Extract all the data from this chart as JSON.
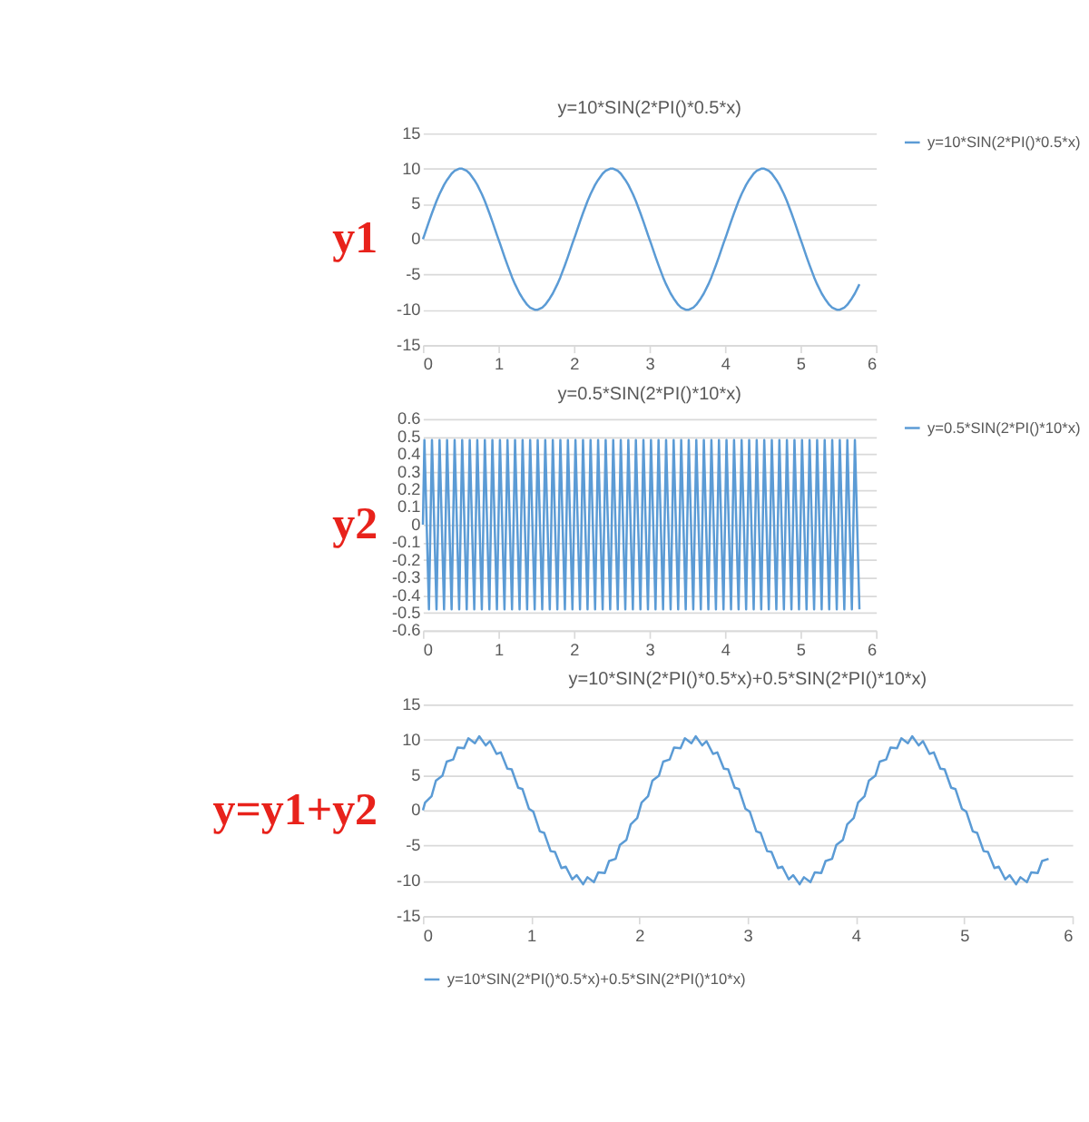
{
  "chart_data": [
    {
      "type": "line",
      "title": "y=10*SIN(2*PI()*0.5*x)",
      "xlim": [
        0,
        6
      ],
      "xticks": [
        0,
        1,
        2,
        3,
        4,
        5,
        6
      ],
      "ylim": [
        -15,
        15
      ],
      "yticks": [
        -15,
        -10,
        -5,
        0,
        5,
        10,
        15
      ],
      "grid": "y",
      "legend": "right",
      "annotations": [
        "y1"
      ],
      "x": [
        0,
        0.02,
        0.08,
        0.12,
        0.18,
        0.22,
        0.28,
        0.32,
        0.38,
        0.42,
        0.48,
        0.52,
        0.58,
        0.62,
        0.68,
        0.72,
        0.78,
        0.82,
        0.88,
        0.92,
        0.98,
        1.02,
        1.08,
        1.12,
        1.18,
        1.22,
        1.28,
        1.32,
        1.38,
        1.42,
        1.48,
        1.52,
        1.58,
        1.62,
        1.68,
        1.72,
        1.78,
        1.82,
        1.88,
        1.92,
        1.98,
        2.02,
        2.08,
        2.12,
        2.18,
        2.22,
        2.28,
        2.32,
        2.38,
        2.42,
        2.48,
        2.52,
        2.58,
        2.62,
        2.68,
        2.72,
        2.78,
        2.82,
        2.88,
        2.92,
        2.98,
        3.02,
        3.08,
        3.12,
        3.18,
        3.22,
        3.28,
        3.32,
        3.38,
        3.42,
        3.48,
        3.52,
        3.58,
        3.62,
        3.68,
        3.72,
        3.78,
        3.82,
        3.88,
        3.92,
        3.98,
        4.02,
        4.08,
        4.12,
        4.18,
        4.22,
        4.28,
        4.32,
        4.38,
        4.42,
        4.48,
        4.52,
        4.58,
        4.62,
        4.68,
        4.72,
        4.78,
        4.82,
        4.88,
        4.92,
        4.98,
        5.02,
        5.08,
        5.12,
        5.18,
        5.22,
        5.28,
        5.32,
        5.38,
        5.42,
        5.48,
        5.52,
        5.58,
        5.62,
        5.68,
        5.72,
        5.78
      ],
      "series": [
        {
          "name": "y=10*SIN(2*PI()*0.5*x)",
          "color": "#5b9bd5",
          "values": [
            0,
            0.6,
            2.5,
            3.7,
            5.4,
            6.4,
            7.7,
            8.4,
            9.3,
            9.7,
            10.0,
            10.0,
            9.7,
            9.3,
            8.4,
            7.7,
            6.4,
            5.4,
            3.7,
            2.5,
            0.6,
            -0.6,
            -2.5,
            -3.7,
            -5.4,
            -6.4,
            -7.7,
            -8.4,
            -9.3,
            -9.7,
            -10.0,
            -10.0,
            -9.7,
            -9.3,
            -8.4,
            -7.7,
            -6.4,
            -5.4,
            -3.7,
            -2.5,
            -0.6,
            0.6,
            2.5,
            3.7,
            5.4,
            6.4,
            7.7,
            8.4,
            9.3,
            9.7,
            10.0,
            10.0,
            9.7,
            9.3,
            8.4,
            7.7,
            6.4,
            5.4,
            3.7,
            2.5,
            0.6,
            -0.6,
            -2.5,
            -3.7,
            -5.4,
            -6.4,
            -7.7,
            -8.4,
            -9.3,
            -9.7,
            -10.0,
            -10.0,
            -9.7,
            -9.3,
            -8.4,
            -7.7,
            -6.4,
            -5.4,
            -3.7,
            -2.5,
            -0.6,
            0.6,
            2.5,
            3.7,
            5.4,
            6.4,
            7.7,
            8.4,
            9.3,
            9.7,
            10.0,
            10.0,
            9.7,
            9.3,
            8.4,
            7.7,
            6.4,
            5.4,
            3.7,
            2.5,
            0.6,
            -0.6,
            -2.5,
            -3.7,
            -5.4,
            -6.4,
            -7.7,
            -8.4,
            -9.3,
            -9.7,
            -10.0,
            -10.0,
            -9.7,
            -9.3,
            -8.4,
            -7.7,
            -6.4
          ]
        }
      ]
    },
    {
      "type": "line",
      "title": "y=0.5*SIN(2*PI()*10*x)",
      "xlim": [
        0,
        6
      ],
      "xticks": [
        0,
        1,
        2,
        3,
        4,
        5,
        6
      ],
      "ylim": [
        -0.6,
        0.6
      ],
      "yticks": [
        -0.6,
        -0.5,
        -0.4,
        -0.3,
        -0.2,
        -0.1,
        0,
        0.1,
        0.2,
        0.3,
        0.4,
        0.5,
        0.6
      ],
      "grid": "y",
      "legend": "right",
      "annotations": [
        "y2"
      ],
      "x": [
        0,
        0.02,
        0.08,
        0.12,
        0.18,
        0.22,
        0.28,
        0.32,
        0.38,
        0.42,
        0.48,
        0.52,
        0.58,
        0.62,
        0.68,
        0.72,
        0.78,
        0.82,
        0.88,
        0.92,
        0.98,
        1.02,
        1.08,
        1.12,
        1.18,
        1.22,
        1.28,
        1.32,
        1.38,
        1.42,
        1.48,
        1.52,
        1.58,
        1.62,
        1.68,
        1.72,
        1.78,
        1.82,
        1.88,
        1.92,
        1.98,
        2.02,
        2.08,
        2.12,
        2.18,
        2.22,
        2.28,
        2.32,
        2.38,
        2.42,
        2.48,
        2.52,
        2.58,
        2.62,
        2.68,
        2.72,
        2.78,
        2.82,
        2.88,
        2.92,
        2.98,
        3.02,
        3.08,
        3.12,
        3.18,
        3.22,
        3.28,
        3.32,
        3.38,
        3.42,
        3.48,
        3.52,
        3.58,
        3.62,
        3.68,
        3.72,
        3.78,
        3.82,
        3.88,
        3.92,
        3.98,
        4.02,
        4.08,
        4.12,
        4.18,
        4.22,
        4.28,
        4.32,
        4.38,
        4.42,
        4.48,
        4.52,
        4.58,
        4.62,
        4.68,
        4.72,
        4.78,
        4.82,
        4.88,
        4.92,
        4.98,
        5.02,
        5.08,
        5.12,
        5.18,
        5.22,
        5.28,
        5.32,
        5.38,
        5.42,
        5.48,
        5.52,
        5.58,
        5.62,
        5.68,
        5.72,
        5.78
      ],
      "series": [
        {
          "name": "y=0.5*SIN(2*PI()*10*x)",
          "color": "#5b9bd5",
          "values": [
            0,
            0.48,
            -0.48,
            0.48,
            -0.48,
            0.48,
            -0.48,
            0.48,
            -0.48,
            0.48,
            -0.48,
            0.48,
            -0.48,
            0.48,
            -0.48,
            0.48,
            -0.48,
            0.48,
            -0.48,
            0.48,
            -0.48,
            0.48,
            -0.48,
            0.48,
            -0.48,
            0.48,
            -0.48,
            0.48,
            -0.48,
            0.48,
            -0.48,
            0.48,
            -0.48,
            0.48,
            -0.48,
            0.48,
            -0.48,
            0.48,
            -0.48,
            0.48,
            -0.48,
            0.48,
            -0.48,
            0.48,
            -0.48,
            0.48,
            -0.48,
            0.48,
            -0.48,
            0.48,
            -0.48,
            0.48,
            -0.48,
            0.48,
            -0.48,
            0.48,
            -0.48,
            0.48,
            -0.48,
            0.48,
            -0.48,
            0.48,
            -0.48,
            0.48,
            -0.48,
            0.48,
            -0.48,
            0.48,
            -0.48,
            0.48,
            -0.48,
            0.48,
            -0.48,
            0.48,
            -0.48,
            0.48,
            -0.48,
            0.48,
            -0.48,
            0.48,
            -0.48,
            0.48,
            -0.48,
            0.48,
            -0.48,
            0.48,
            -0.48,
            0.48,
            -0.48,
            0.48,
            -0.48,
            0.48,
            -0.48,
            0.48,
            -0.48,
            0.48,
            -0.48,
            0.48,
            -0.48,
            0.48,
            -0.48,
            0.48,
            -0.48,
            0.48,
            -0.48,
            0.48,
            -0.48,
            0.48,
            -0.48,
            0.48,
            -0.48,
            0.48,
            -0.48,
            0.48,
            -0.48,
            0.48,
            -0.48
          ]
        }
      ]
    },
    {
      "type": "line",
      "title": "y=10*SIN(2*PI()*0.5*x)+0.5*SIN(2*PI()*10*x)",
      "xlim": [
        0,
        6
      ],
      "xticks": [
        0,
        1,
        2,
        3,
        4,
        5,
        6
      ],
      "ylim": [
        -15,
        15
      ],
      "yticks": [
        -15,
        -10,
        -5,
        0,
        5,
        10,
        15
      ],
      "grid": "y",
      "legend": "bottom",
      "annotations": [
        "y=y1+y2"
      ],
      "x": [
        0,
        0.02,
        0.08,
        0.12,
        0.18,
        0.22,
        0.28,
        0.32,
        0.38,
        0.42,
        0.48,
        0.52,
        0.58,
        0.62,
        0.68,
        0.72,
        0.78,
        0.82,
        0.88,
        0.92,
        0.98,
        1.02,
        1.08,
        1.12,
        1.18,
        1.22,
        1.28,
        1.32,
        1.38,
        1.42,
        1.48,
        1.52,
        1.58,
        1.62,
        1.68,
        1.72,
        1.78,
        1.82,
        1.88,
        1.92,
        1.98,
        2.02,
        2.08,
        2.12,
        2.18,
        2.22,
        2.28,
        2.32,
        2.38,
        2.42,
        2.48,
        2.52,
        2.58,
        2.62,
        2.68,
        2.72,
        2.78,
        2.82,
        2.88,
        2.92,
        2.98,
        3.02,
        3.08,
        3.12,
        3.18,
        3.22,
        3.28,
        3.32,
        3.38,
        3.42,
        3.48,
        3.52,
        3.58,
        3.62,
        3.68,
        3.72,
        3.78,
        3.82,
        3.88,
        3.92,
        3.98,
        4.02,
        4.08,
        4.12,
        4.18,
        4.22,
        4.28,
        4.32,
        4.38,
        4.42,
        4.48,
        4.52,
        4.58,
        4.62,
        4.68,
        4.72,
        4.78,
        4.82,
        4.88,
        4.92,
        4.98,
        5.02,
        5.08,
        5.12,
        5.18,
        5.22,
        5.28,
        5.32,
        5.38,
        5.42,
        5.48,
        5.52,
        5.58,
        5.62,
        5.68,
        5.72,
        5.78
      ],
      "series": [
        {
          "name": "y=10*SIN(2*PI()*0.5*x)+0.5*SIN(2*PI()*10*x)",
          "color": "#5b9bd5",
          "values": [
            0,
            1.1,
            2.0,
            4.2,
            4.9,
            6.9,
            7.2,
            8.9,
            8.8,
            10.2,
            9.5,
            10.5,
            9.2,
            9.8,
            8.0,
            8.2,
            5.9,
            5.8,
            3.2,
            3.0,
            0.2,
            -0.2,
            -3.0,
            -3.2,
            -5.8,
            -5.9,
            -8.2,
            -8.0,
            -9.8,
            -9.2,
            -10.5,
            -9.5,
            -10.2,
            -8.8,
            -8.9,
            -7.2,
            -6.9,
            -4.9,
            -4.2,
            -2.0,
            -1.1,
            1.1,
            2.0,
            4.2,
            4.9,
            6.9,
            7.2,
            8.9,
            8.8,
            10.2,
            9.5,
            10.5,
            9.2,
            9.8,
            8.0,
            8.2,
            5.9,
            5.8,
            3.2,
            3.0,
            0.2,
            -0.2,
            -3.0,
            -3.2,
            -5.8,
            -5.9,
            -8.2,
            -8.0,
            -9.8,
            -9.2,
            -10.5,
            -9.5,
            -10.2,
            -8.8,
            -8.9,
            -7.2,
            -6.9,
            -4.9,
            -4.2,
            -2.0,
            -1.1,
            1.1,
            2.0,
            4.2,
            4.9,
            6.9,
            7.2,
            8.9,
            8.8,
            10.2,
            9.5,
            10.5,
            9.2,
            9.8,
            8.0,
            8.2,
            5.9,
            5.8,
            3.2,
            3.0,
            0.2,
            -0.2,
            -3.0,
            -3.2,
            -5.8,
            -5.9,
            -8.2,
            -8.0,
            -9.8,
            -9.2,
            -10.5,
            -9.5,
            -10.2,
            -8.8,
            -8.9,
            -7.2,
            -6.9
          ]
        }
      ]
    }
  ]
}
